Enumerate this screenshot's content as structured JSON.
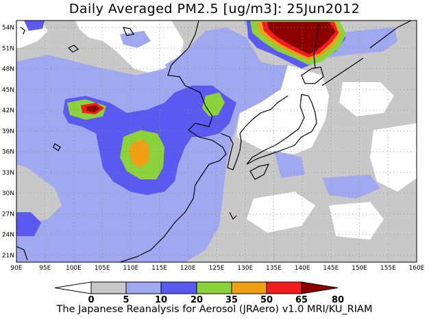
{
  "title": "Daily Averaged PM2.5 [ug/m3]: 25Jun2012",
  "footer": "The Japanese Reanalysis for Aerosol (JRAero) v1.0 MRI/KU_RIAM",
  "map": {
    "lon_range": [
      90,
      160
    ],
    "lat_range": [
      20,
      55
    ],
    "lon_labels": [
      "90E",
      "95E",
      "100E",
      "105E",
      "110E",
      "115E",
      "120E",
      "125E",
      "130E",
      "135E",
      "140E",
      "145E",
      "150E",
      "155E",
      "160E"
    ],
    "lat_labels": [
      "21N",
      "24N",
      "27N",
      "30N",
      "33N",
      "36N",
      "39N",
      "42N",
      "45N",
      "48N",
      "51N",
      "54N"
    ],
    "gridlines": "dotted"
  },
  "colorbar": {
    "levels": [
      "0",
      "5",
      "10",
      "20",
      "35",
      "50",
      "65",
      "80"
    ],
    "colors": [
      "#ffffff",
      "#c8c8c8",
      "#a0a8f0",
      "#5a5af0",
      "#8cd23c",
      "#f0a014",
      "#f01e1e",
      "#8c0000"
    ]
  }
}
